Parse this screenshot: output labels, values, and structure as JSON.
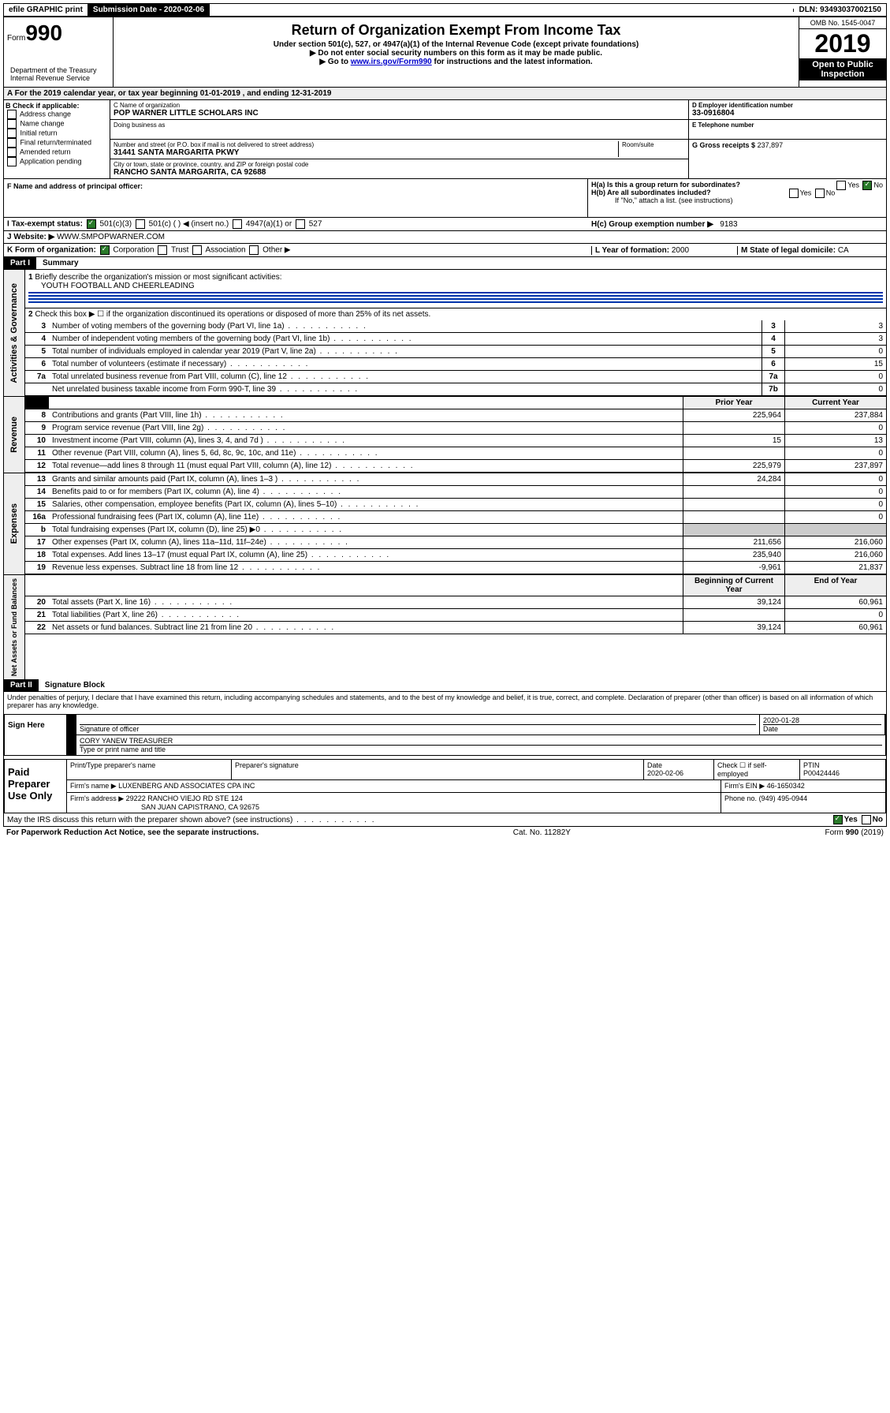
{
  "header": {
    "efile": "efile GRAPHIC print",
    "sub_label": "Submission Date - 2020-02-06",
    "dln": "DLN: 93493037002150"
  },
  "form": {
    "form_word": "Form",
    "form_num": "990",
    "title": "Return of Organization Exempt From Income Tax",
    "sub1": "Under section 501(c), 527, or 4947(a)(1) of the Internal Revenue Code (except private foundations)",
    "sub2": "▶ Do not enter social security numbers on this form as it may be made public.",
    "sub3_pre": "▶ Go to ",
    "sub3_link": "www.irs.gov/Form990",
    "sub3_post": " for instructions and the latest information.",
    "dept": "Department of the Treasury\nInternal Revenue Service",
    "omb": "OMB No. 1545-0047",
    "year": "2019",
    "otp": "Open to Public Inspection"
  },
  "period": "A For the 2019 calendar year, or tax year beginning 01-01-2019    , and ending 12-31-2019",
  "B": {
    "label": "B Check if applicable:",
    "items": [
      "Address change",
      "Name change",
      "Initial return",
      "Final return/terminated",
      "Amended return",
      "Application pending"
    ]
  },
  "C": {
    "name_label": "C Name of organization",
    "name": "POP WARNER LITTLE SCHOLARS INC",
    "dba_label": "Doing business as",
    "addr_label": "Number and street (or P.O. box if mail is not delivered to street address)",
    "room_label": "Room/suite",
    "addr": "31441 SANTA MARGARITA PKWY",
    "city_label": "City or town, state or province, country, and ZIP or foreign postal code",
    "city": "RANCHO SANTA MARGARITA, CA  92688"
  },
  "D": {
    "label": "D Employer identification number",
    "val": "33-0916804"
  },
  "E": {
    "label": "E Telephone number",
    "val": ""
  },
  "G": {
    "label": "G Gross receipts $",
    "val": "237,897"
  },
  "F": {
    "label": "F  Name and address of principal officer:"
  },
  "H": {
    "a": "H(a)  Is this a group return for subordinates?",
    "b": "H(b)  Are all subordinates included?",
    "b_note": "If \"No,\" attach a list. (see instructions)",
    "c": "H(c)  Group exemption number ▶",
    "c_val": "9183",
    "yes": "Yes",
    "no": "No"
  },
  "I": {
    "label": "I    Tax-exempt status:",
    "opts": [
      "501(c)(3)",
      "501(c) (   ) ◀ (insert no.)",
      "4947(a)(1) or",
      "527"
    ]
  },
  "J": {
    "label": "J   Website: ▶",
    "val": "WWW.SMPOPWARNER.COM"
  },
  "K": {
    "label": "K Form of organization:",
    "opts": [
      "Corporation",
      "Trust",
      "Association",
      "Other ▶"
    ]
  },
  "L": {
    "label": "L Year of formation:",
    "val": "2000"
  },
  "M": {
    "label": "M State of legal domicile:",
    "val": "CA"
  },
  "part1": {
    "hdr": "Part I",
    "title": "Summary"
  },
  "gov": {
    "side": "Activities & Governance",
    "l1": "Briefly describe the organization's mission or most significant activities:",
    "l1v": "YOUTH FOOTBALL AND CHEERLEADING",
    "l2": "Check this box ▶ ☐  if the organization discontinued its operations or disposed of more than 25% of its net assets.",
    "rows": [
      {
        "n": "3",
        "d": "Number of voting members of the governing body (Part VI, line 1a)",
        "b": "3",
        "v": "3"
      },
      {
        "n": "4",
        "d": "Number of independent voting members of the governing body (Part VI, line 1b)",
        "b": "4",
        "v": "3"
      },
      {
        "n": "5",
        "d": "Total number of individuals employed in calendar year 2019 (Part V, line 2a)",
        "b": "5",
        "v": "0"
      },
      {
        "n": "6",
        "d": "Total number of volunteers (estimate if necessary)",
        "b": "6",
        "v": "15"
      },
      {
        "n": "7a",
        "d": "Total unrelated business revenue from Part VIII, column (C), line 12",
        "b": "7a",
        "v": "0"
      },
      {
        "n": "",
        "d": "Net unrelated business taxable income from Form 990-T, line 39",
        "b": "7b",
        "v": "0"
      }
    ]
  },
  "cols": {
    "prior": "Prior Year",
    "current": "Current Year",
    "beg": "Beginning of Current Year",
    "end": "End of Year"
  },
  "rev": {
    "side": "Revenue",
    "rows": [
      {
        "n": "8",
        "d": "Contributions and grants (Part VIII, line 1h)",
        "p": "225,964",
        "c": "237,884"
      },
      {
        "n": "9",
        "d": "Program service revenue (Part VIII, line 2g)",
        "p": "",
        "c": "0"
      },
      {
        "n": "10",
        "d": "Investment income (Part VIII, column (A), lines 3, 4, and 7d )",
        "p": "15",
        "c": "13"
      },
      {
        "n": "11",
        "d": "Other revenue (Part VIII, column (A), lines 5, 6d, 8c, 9c, 10c, and 11e)",
        "p": "",
        "c": "0"
      },
      {
        "n": "12",
        "d": "Total revenue—add lines 8 through 11 (must equal Part VIII, column (A), line 12)",
        "p": "225,979",
        "c": "237,897"
      }
    ]
  },
  "exp": {
    "side": "Expenses",
    "rows": [
      {
        "n": "13",
        "d": "Grants and similar amounts paid (Part IX, column (A), lines 1–3 )",
        "p": "24,284",
        "c": "0"
      },
      {
        "n": "14",
        "d": "Benefits paid to or for members (Part IX, column (A), line 4)",
        "p": "",
        "c": "0"
      },
      {
        "n": "15",
        "d": "Salaries, other compensation, employee benefits (Part IX, column (A), lines 5–10)",
        "p": "",
        "c": "0"
      },
      {
        "n": "16a",
        "d": "Professional fundraising fees (Part IX, column (A), line 11e)",
        "p": "",
        "c": "0"
      },
      {
        "n": "b",
        "d": "Total fundraising expenses (Part IX, column (D), line 25) ▶0",
        "shade": true
      },
      {
        "n": "17",
        "d": "Other expenses (Part IX, column (A), lines 11a–11d, 11f–24e)",
        "p": "211,656",
        "c": "216,060"
      },
      {
        "n": "18",
        "d": "Total expenses. Add lines 13–17 (must equal Part IX, column (A), line 25)",
        "p": "235,940",
        "c": "216,060"
      },
      {
        "n": "19",
        "d": "Revenue less expenses. Subtract line 18 from line 12",
        "p": "-9,961",
        "c": "21,837"
      }
    ]
  },
  "na": {
    "side": "Net Assets or Fund Balances",
    "rows": [
      {
        "n": "20",
        "d": "Total assets (Part X, line 16)",
        "p": "39,124",
        "c": "60,961"
      },
      {
        "n": "21",
        "d": "Total liabilities (Part X, line 26)",
        "p": "",
        "c": "0"
      },
      {
        "n": "22",
        "d": "Net assets or fund balances. Subtract line 21 from line 20",
        "p": "39,124",
        "c": "60,961"
      }
    ]
  },
  "part2": {
    "hdr": "Part II",
    "title": "Signature Block"
  },
  "perjury": "Under penalties of perjury, I declare that I have examined this return, including accompanying schedules and statements, and to the best of my knowledge and belief, it is true, correct, and complete. Declaration of preparer (other than officer) is based on all information of which preparer has any knowledge.",
  "sign": {
    "here": "Sign Here",
    "sig_label": "Signature of officer",
    "date_label": "Date",
    "date": "2020-01-28",
    "name": "CORY YANEW  TREASURER",
    "name_label": "Type or print name and title"
  },
  "paid": {
    "left": "Paid Preparer Use Only",
    "h1": "Print/Type preparer's name",
    "h2": "Preparer's signature",
    "h3": "Date",
    "h3v": "2020-02-06",
    "h4": "Check ☐ if self-employed",
    "h5": "PTIN",
    "h5v": "P00424446",
    "firm_label": "Firm's name    ▶",
    "firm": "LUXENBERG AND ASSOCIATES CPA INC",
    "ein_label": "Firm's EIN ▶",
    "ein": "46-1650342",
    "addr_label": "Firm's address ▶",
    "addr1": "29222 RANCHO VIEJO RD STE 124",
    "addr2": "SAN JUAN CAPISTRANO, CA  92675",
    "phone_label": "Phone no.",
    "phone": "(949) 495-0944"
  },
  "discuss": "May the IRS discuss this return with the preparer shown above? (see instructions)",
  "footer": {
    "pra": "For Paperwork Reduction Act Notice, see the separate instructions.",
    "cat": "Cat. No. 11282Y",
    "form": "Form 990 (2019)"
  }
}
